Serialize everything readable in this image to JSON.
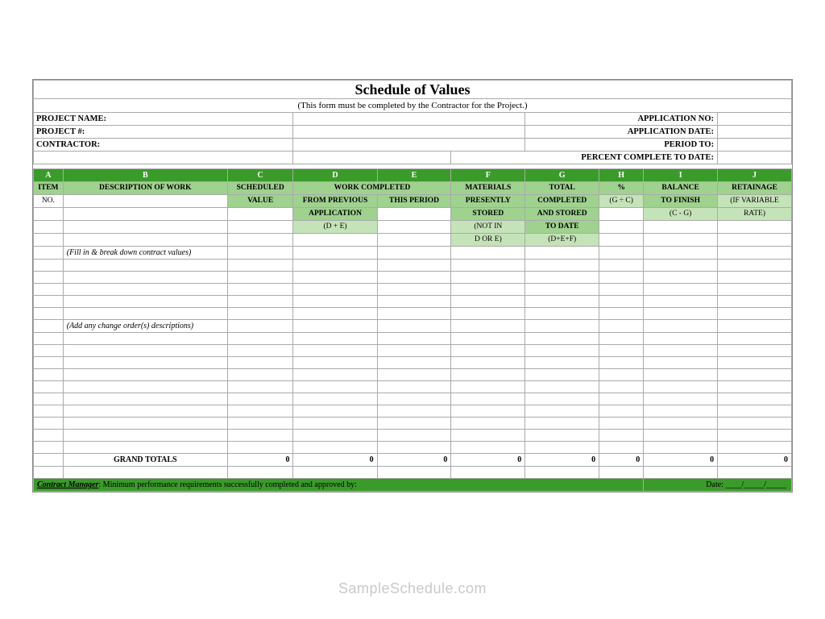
{
  "title": "Schedule of Values",
  "subtitle": "(This form must be completed by the Contractor for the Project.)",
  "info_left": {
    "project_name": "PROJECT NAME:",
    "project_num": "PROJECT #:",
    "contractor": "CONTRACTOR:"
  },
  "info_right": {
    "app_no": "APPLICATION NO:",
    "app_date": "APPLICATION DATE:",
    "period_to": "PERIOD TO:",
    "pct_complete": "PERCENT COMPLETE TO DATE:"
  },
  "col_letters": [
    "A",
    "B",
    "C",
    "D",
    "E",
    "F",
    "G",
    "H",
    "I",
    "J"
  ],
  "headers": {
    "r1": [
      "ITEM",
      "DESCRIPTION OF WORK",
      "SCHEDULED",
      "WORK COMPLETED",
      "MATERIALS",
      "TOTAL",
      "%",
      "BALANCE",
      "RETAINAGE"
    ],
    "r2": [
      "NO.",
      "",
      "VALUE",
      "FROM PREVIOUS",
      "THIS PERIOD",
      "PRESENTLY",
      "COMPLETED",
      "(G ÷ C)",
      "TO FINISH",
      "(IF VARIABLE"
    ],
    "r3": [
      "",
      "",
      "",
      "APPLICATION",
      "",
      "STORED",
      "AND STORED",
      "",
      "(C - G)",
      "RATE)"
    ],
    "r4": [
      "",
      "",
      "",
      "(D + E)",
      "",
      "(NOT IN",
      "TO DATE",
      "",
      "",
      ""
    ],
    "r5": [
      "",
      "",
      "",
      "",
      "",
      "D OR E)",
      "(D+E+F)",
      "",
      "",
      ""
    ]
  },
  "body": {
    "note1": "(Fill in & break down contract values)",
    "note2": "(Add any change order(s) descriptions)",
    "blank_before_note1": 0,
    "blank_after_note1": 5,
    "blank_after_note2": 10
  },
  "totals": {
    "label": "GRAND TOTALS",
    "values": {
      "C": "0",
      "D": "0",
      "E": "0",
      "F": "0",
      "G": "0",
      "H": "0",
      "I": "0",
      "J": "0"
    }
  },
  "footer": {
    "label": "Contract Manager",
    "text": ": Minimum performance requirements successfully completed and approved by:",
    "date_label": "Date:",
    "date_slashes": "____/_____/_____"
  },
  "watermark": "SampleSchedule.com",
  "colors": {
    "header_green": "#3a9b2a",
    "light_green": "#9fd18f",
    "pale_green": "#c5e3b8",
    "border": "#aaaaaa",
    "watermark": "#c9c9c9"
  }
}
